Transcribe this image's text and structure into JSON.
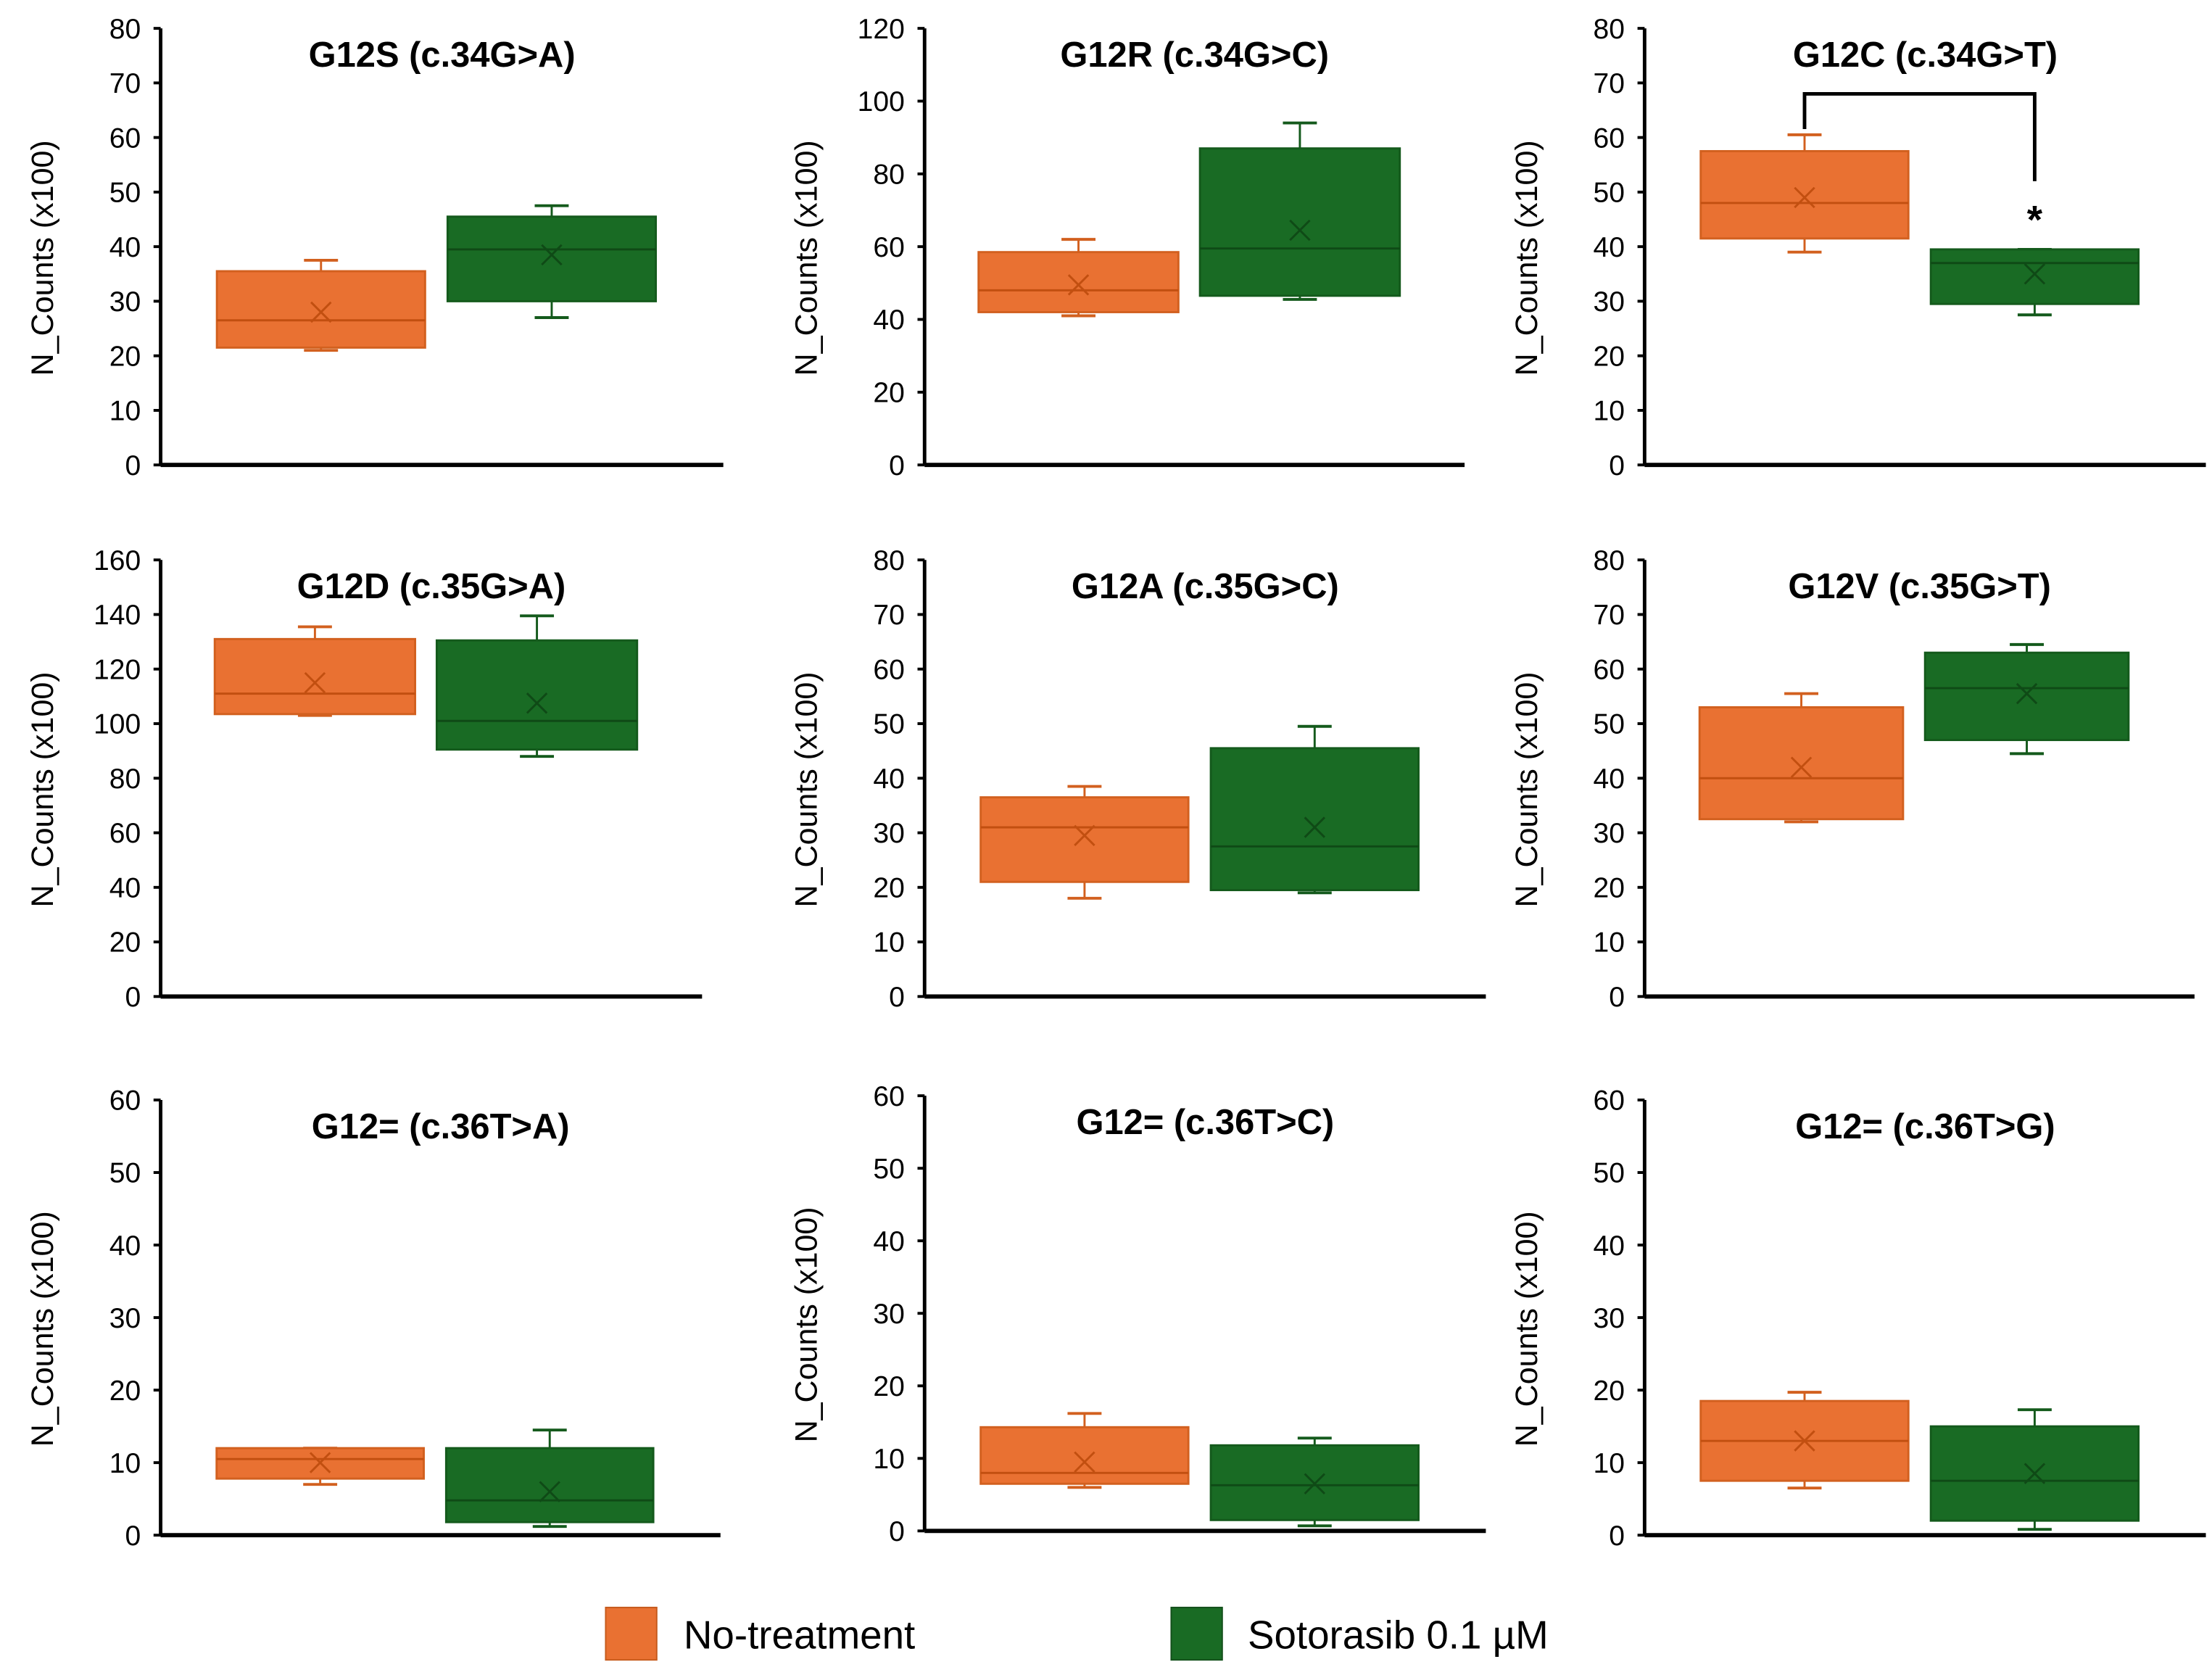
{
  "chart_data": {
    "type": "box",
    "ylabel": "N_Counts (x100)",
    "colors": {
      "No-treatment": "#E97132",
      "Sotorasib 0.1 µM": "#196B24"
    },
    "legend": {
      "placement": "bottom-center",
      "entries": [
        "No-treatment",
        "Sotorasib 0.1 µM"
      ]
    },
    "panels": [
      {
        "title": "G12S (c.34G>A)",
        "ylim": [
          0,
          80
        ],
        "ticks": [
          0,
          10,
          20,
          30,
          40,
          50,
          60,
          70,
          80
        ],
        "series": [
          {
            "name": "No-treatment",
            "min": 21,
            "q1": 21.5,
            "median": 26.5,
            "q3": 35.5,
            "max": 37.5,
            "mean": 28
          },
          {
            "name": "Sotorasib 0.1 µM",
            "min": 27,
            "q1": 30,
            "median": 39.5,
            "q3": 45.5,
            "max": 47.5,
            "mean": 38.5
          }
        ]
      },
      {
        "title": "G12R (c.34G>C)",
        "ylim": [
          0,
          120
        ],
        "ticks": [
          0,
          20,
          40,
          60,
          80,
          100,
          120
        ],
        "series": [
          {
            "name": "No-treatment",
            "min": 41,
            "q1": 42,
            "median": 48,
            "q3": 58.5,
            "max": 62,
            "mean": 49.5
          },
          {
            "name": "Sotorasib 0.1 µM",
            "min": 45.5,
            "q1": 46.5,
            "median": 59.5,
            "q3": 87,
            "max": 94,
            "mean": 64.5
          }
        ]
      },
      {
        "title": "G12C (c.34G>T)",
        "ylim": [
          0,
          80
        ],
        "ticks": [
          0,
          10,
          20,
          30,
          40,
          50,
          60,
          70,
          80
        ],
        "significance": {
          "label": "*",
          "level": 68
        },
        "series": [
          {
            "name": "No-treatment",
            "min": 39,
            "q1": 41.5,
            "median": 48,
            "q3": 57.5,
            "max": 60.5,
            "mean": 49
          },
          {
            "name": "Sotorasib 0.1 µM",
            "min": 27.5,
            "q1": 29.5,
            "median": 37,
            "q3": 39.5,
            "max": 39.5,
            "mean": 35
          }
        ]
      },
      {
        "title": "G12D (c.35G>A)",
        "ylim": [
          0,
          160
        ],
        "ticks": [
          0,
          20,
          40,
          60,
          80,
          100,
          120,
          140,
          160
        ],
        "series": [
          {
            "name": "No-treatment",
            "min": 103,
            "q1": 103.5,
            "median": 111,
            "q3": 131,
            "max": 135.5,
            "mean": 115
          },
          {
            "name": "Sotorasib 0.1 µM",
            "min": 88,
            "q1": 90.5,
            "median": 101,
            "q3": 130.5,
            "max": 139.5,
            "mean": 107.5
          }
        ]
      },
      {
        "title": "G12A (c.35G>C)",
        "ylim": [
          0,
          80
        ],
        "ticks": [
          0,
          10,
          20,
          30,
          40,
          50,
          60,
          70,
          80
        ],
        "series": [
          {
            "name": "No-treatment",
            "min": 18,
            "q1": 21,
            "median": 31,
            "q3": 36.5,
            "max": 38.5,
            "mean": 29.5
          },
          {
            "name": "Sotorasib 0.1 µM",
            "min": 19,
            "q1": 19.5,
            "median": 27.5,
            "q3": 45.5,
            "max": 49.5,
            "mean": 31
          }
        ]
      },
      {
        "title": "G12V (c.35G>T)",
        "ylim": [
          0,
          80
        ],
        "ticks": [
          0,
          10,
          20,
          30,
          40,
          50,
          60,
          70,
          80
        ],
        "series": [
          {
            "name": "No-treatment",
            "min": 32,
            "q1": 32.5,
            "median": 40,
            "q3": 53,
            "max": 55.5,
            "mean": 42
          },
          {
            "name": "Sotorasib 0.1 µM",
            "min": 44.5,
            "q1": 47,
            "median": 56.5,
            "q3": 63,
            "max": 64.5,
            "mean": 55.5
          }
        ]
      },
      {
        "title": "G12= (c.36T>A)",
        "ylim": [
          0,
          60
        ],
        "ticks": [
          0,
          10,
          20,
          30,
          40,
          50,
          60
        ],
        "series": [
          {
            "name": "No-treatment",
            "min": 7,
            "q1": 7.8,
            "median": 10.5,
            "q3": 12,
            "max": 12,
            "mean": 10
          },
          {
            "name": "Sotorasib 0.1 µM",
            "min": 1.2,
            "q1": 1.8,
            "median": 4.8,
            "q3": 12,
            "max": 14.5,
            "mean": 6
          }
        ]
      },
      {
        "title": "G12= (c.36T>C)",
        "ylim": [
          0,
          60
        ],
        "ticks": [
          0,
          10,
          20,
          30,
          40,
          50,
          60
        ],
        "series": [
          {
            "name": "No-treatment",
            "min": 6,
            "q1": 6.5,
            "median": 8,
            "q3": 14.3,
            "max": 16.2,
            "mean": 9.5
          },
          {
            "name": "Sotorasib 0.1 µM",
            "min": 0.7,
            "q1": 1.5,
            "median": 6.3,
            "q3": 11.8,
            "max": 12.8,
            "mean": 6.5
          }
        ]
      },
      {
        "title": "G12= (c.36T>G)",
        "ylim": [
          0,
          60
        ],
        "ticks": [
          0,
          10,
          20,
          30,
          40,
          50,
          60
        ],
        "series": [
          {
            "name": "No-treatment",
            "min": 6.5,
            "q1": 7.5,
            "median": 13,
            "q3": 18.5,
            "max": 19.7,
            "mean": 13
          },
          {
            "name": "Sotorasib 0.1 µM",
            "min": 0.8,
            "q1": 2,
            "median": 7.5,
            "q3": 15,
            "max": 17.3,
            "mean": 8.5
          }
        ]
      }
    ]
  }
}
